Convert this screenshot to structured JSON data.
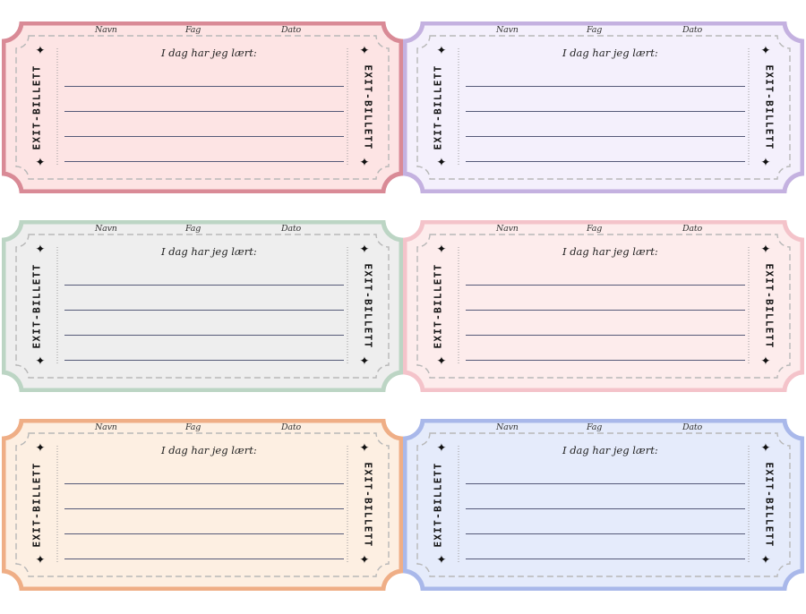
{
  "labels": {
    "name": "Navn",
    "subject": "Fag",
    "date": "Dato",
    "prompt": "I dag har jeg lært:",
    "side": "EXIT-BILLETT",
    "star": "✦"
  },
  "tickets": [
    {
      "id": "pink-red",
      "fill": "#fde4e4",
      "border": "#d98a96"
    },
    {
      "id": "lavender",
      "fill": "#f4f0fc",
      "border": "#c4b1e0"
    },
    {
      "id": "grey",
      "fill": "#eeeeee",
      "border": "#bcd5c4"
    },
    {
      "id": "light-pink",
      "fill": "#fdecec",
      "border": "#f4c3ca"
    },
    {
      "id": "peach",
      "fill": "#fdefe2",
      "border": "#efae86"
    },
    {
      "id": "blue",
      "fill": "#e5ebfb",
      "border": "#a9b8ea"
    }
  ]
}
